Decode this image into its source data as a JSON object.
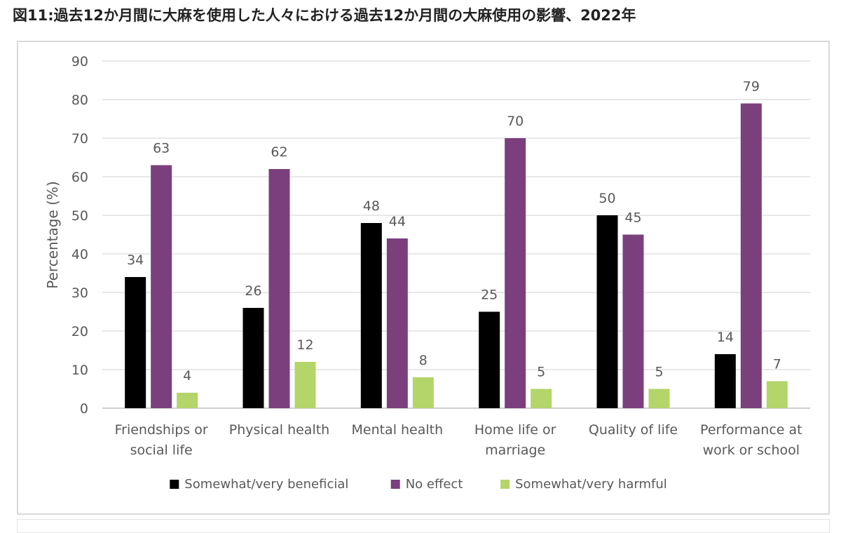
{
  "page": {
    "title": "図11:過去12か月間に大麻を使用した人々における過去12か月間の大麻使用の影響、2022年"
  },
  "chart_data": {
    "type": "bar",
    "ylabel": "Percentage (%)",
    "xlabel": "",
    "ylim": [
      0,
      90
    ],
    "yticks": [
      0,
      10,
      20,
      30,
      40,
      50,
      60,
      70,
      80,
      90
    ],
    "grid": true,
    "legend_position": "bottom",
    "categories": [
      [
        "Friendships or",
        "social life"
      ],
      [
        "Physical health"
      ],
      [
        "Mental health"
      ],
      [
        "Home life or",
        "marriage"
      ],
      [
        "Quality of life"
      ],
      [
        "Performance at",
        "work or school"
      ]
    ],
    "series": [
      {
        "name": "Somewhat/very beneficial",
        "color": "#000000",
        "values": [
          34,
          26,
          48,
          25,
          50,
          14
        ]
      },
      {
        "name": "No effect",
        "color": "#7b3f7e",
        "values": [
          63,
          62,
          44,
          70,
          45,
          79
        ]
      },
      {
        "name": "Somewhat/very harmful",
        "color": "#b3d56a",
        "values": [
          4,
          12,
          8,
          5,
          5,
          7
        ]
      }
    ]
  }
}
